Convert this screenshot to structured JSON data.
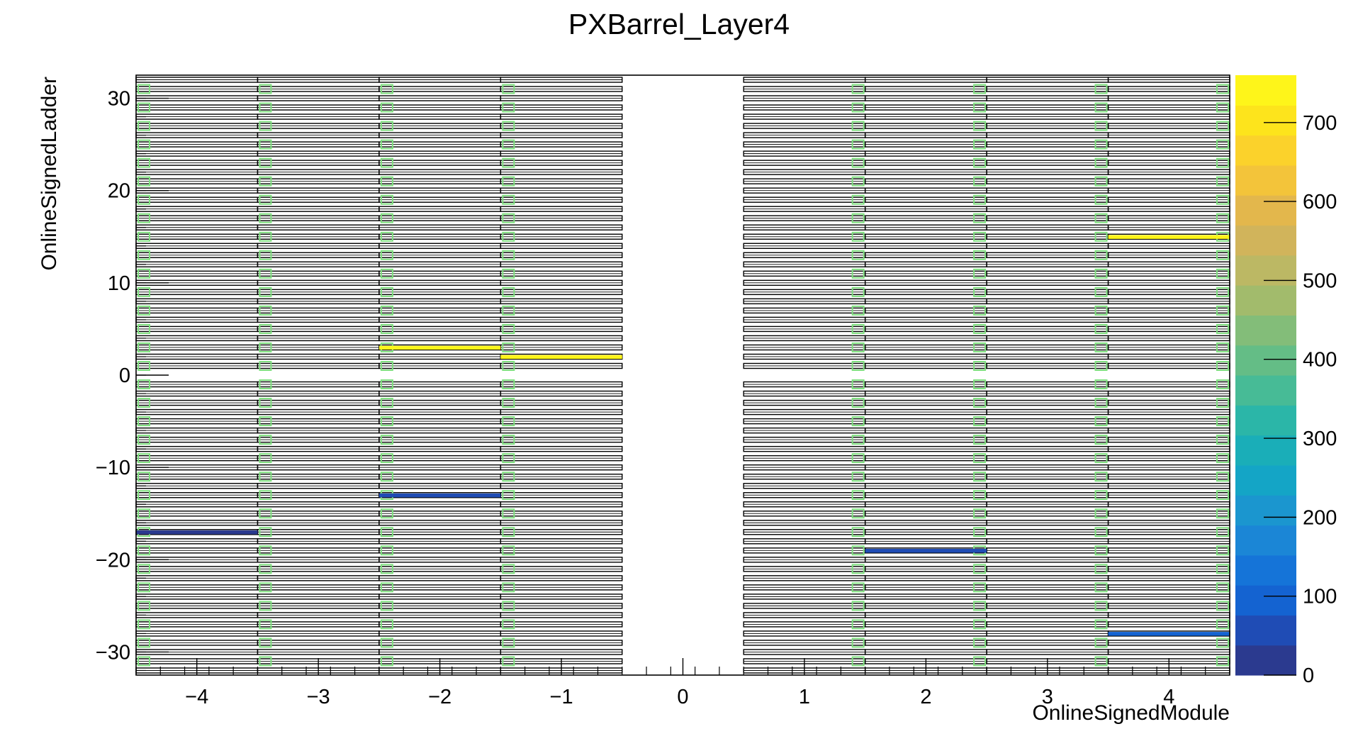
{
  "chart_data": {
    "type": "heatmap",
    "title": "PXBarrel_Layer4",
    "xlabel": "OnlineSignedModule",
    "ylabel": "OnlineSignedLadder",
    "xlim": [
      -4.5,
      4.5
    ],
    "ylim": [
      -32.5,
      32.5
    ],
    "x_ticks": [
      -4,
      -3,
      -2,
      -1,
      0,
      1,
      2,
      3,
      4
    ],
    "x_tick_labels": [
      "−4",
      "−3",
      "−2",
      "−1",
      "0",
      "1",
      "2",
      "3",
      "4"
    ],
    "y_ticks": [
      30,
      20,
      10,
      0,
      -10,
      -20,
      -30
    ],
    "y_tick_labels": [
      "30",
      "20",
      "10",
      "0",
      "−10",
      "−20",
      "−30"
    ],
    "z_range": [
      0,
      760
    ],
    "z_ticks": [
      0,
      100,
      200,
      300,
      400,
      500,
      600,
      700
    ],
    "z_tick_labels": [
      "0",
      "100",
      "200",
      "300",
      "400",
      "500",
      "600",
      "700"
    ],
    "palette": [
      "#2b3a8f",
      "#1f4cb5",
      "#1463d1",
      "#1574d8",
      "#1b86d6",
      "#1b96cf",
      "#14a5c6",
      "#1aaeb8",
      "#2bb6a8",
      "#47bb96",
      "#64bd86",
      "#83bd79",
      "#a2bb6c",
      "#bcb864",
      "#d1b45b",
      "#e3b74c",
      "#f3c43a",
      "#fbd22b",
      "#fde41c",
      "#fef51a"
    ],
    "cells": [
      {
        "x": -2,
        "y": 3,
        "value": 760
      },
      {
        "x": -1,
        "y": 2,
        "value": 760
      },
      {
        "x": 4,
        "y": 15,
        "value": 760
      },
      {
        "x": -4,
        "y": -17,
        "value": 30
      },
      {
        "x": -2,
        "y": -13,
        "value": 45
      },
      {
        "x": 2,
        "y": -19,
        "value": 55
      },
      {
        "x": 4,
        "y": -28,
        "value": 110
      }
    ]
  }
}
